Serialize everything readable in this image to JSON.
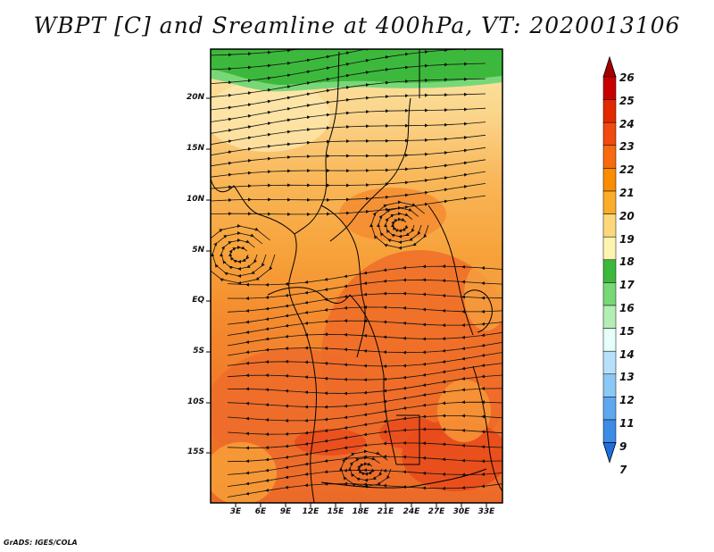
{
  "title": "WBPT [C] and Sreamline at 400hPa, VT: 2020013106",
  "credit": "GrADS: IGES/COLA",
  "lat_labels": [
    "20N",
    "15N",
    "10N",
    "5N",
    "EQ",
    "5S",
    "10S",
    "15S"
  ],
  "lon_labels": [
    "3E",
    "6E",
    "9E",
    "12E",
    "15E",
    "18E",
    "21E",
    "24E",
    "27E",
    "30E",
    "33E"
  ],
  "colorbar": {
    "labels": [
      "26",
      "25",
      "24",
      "23",
      "22",
      "21",
      "20",
      "19",
      "18",
      "17",
      "16",
      "15",
      "14",
      "13",
      "12",
      "11",
      "9",
      "7"
    ],
    "colors": [
      "#a50000",
      "#c80000",
      "#e12a00",
      "#f04a10",
      "#f76a10",
      "#fa8c00",
      "#fbad2a",
      "#fdd77c",
      "#fdf4b0",
      "#3cb93c",
      "#78d878",
      "#b4eeb4",
      "#e6fff8",
      "#b9e0fa",
      "#8cc8f5",
      "#5fa8ef",
      "#3c8ce6",
      "#1e6ee0"
    ]
  }
}
